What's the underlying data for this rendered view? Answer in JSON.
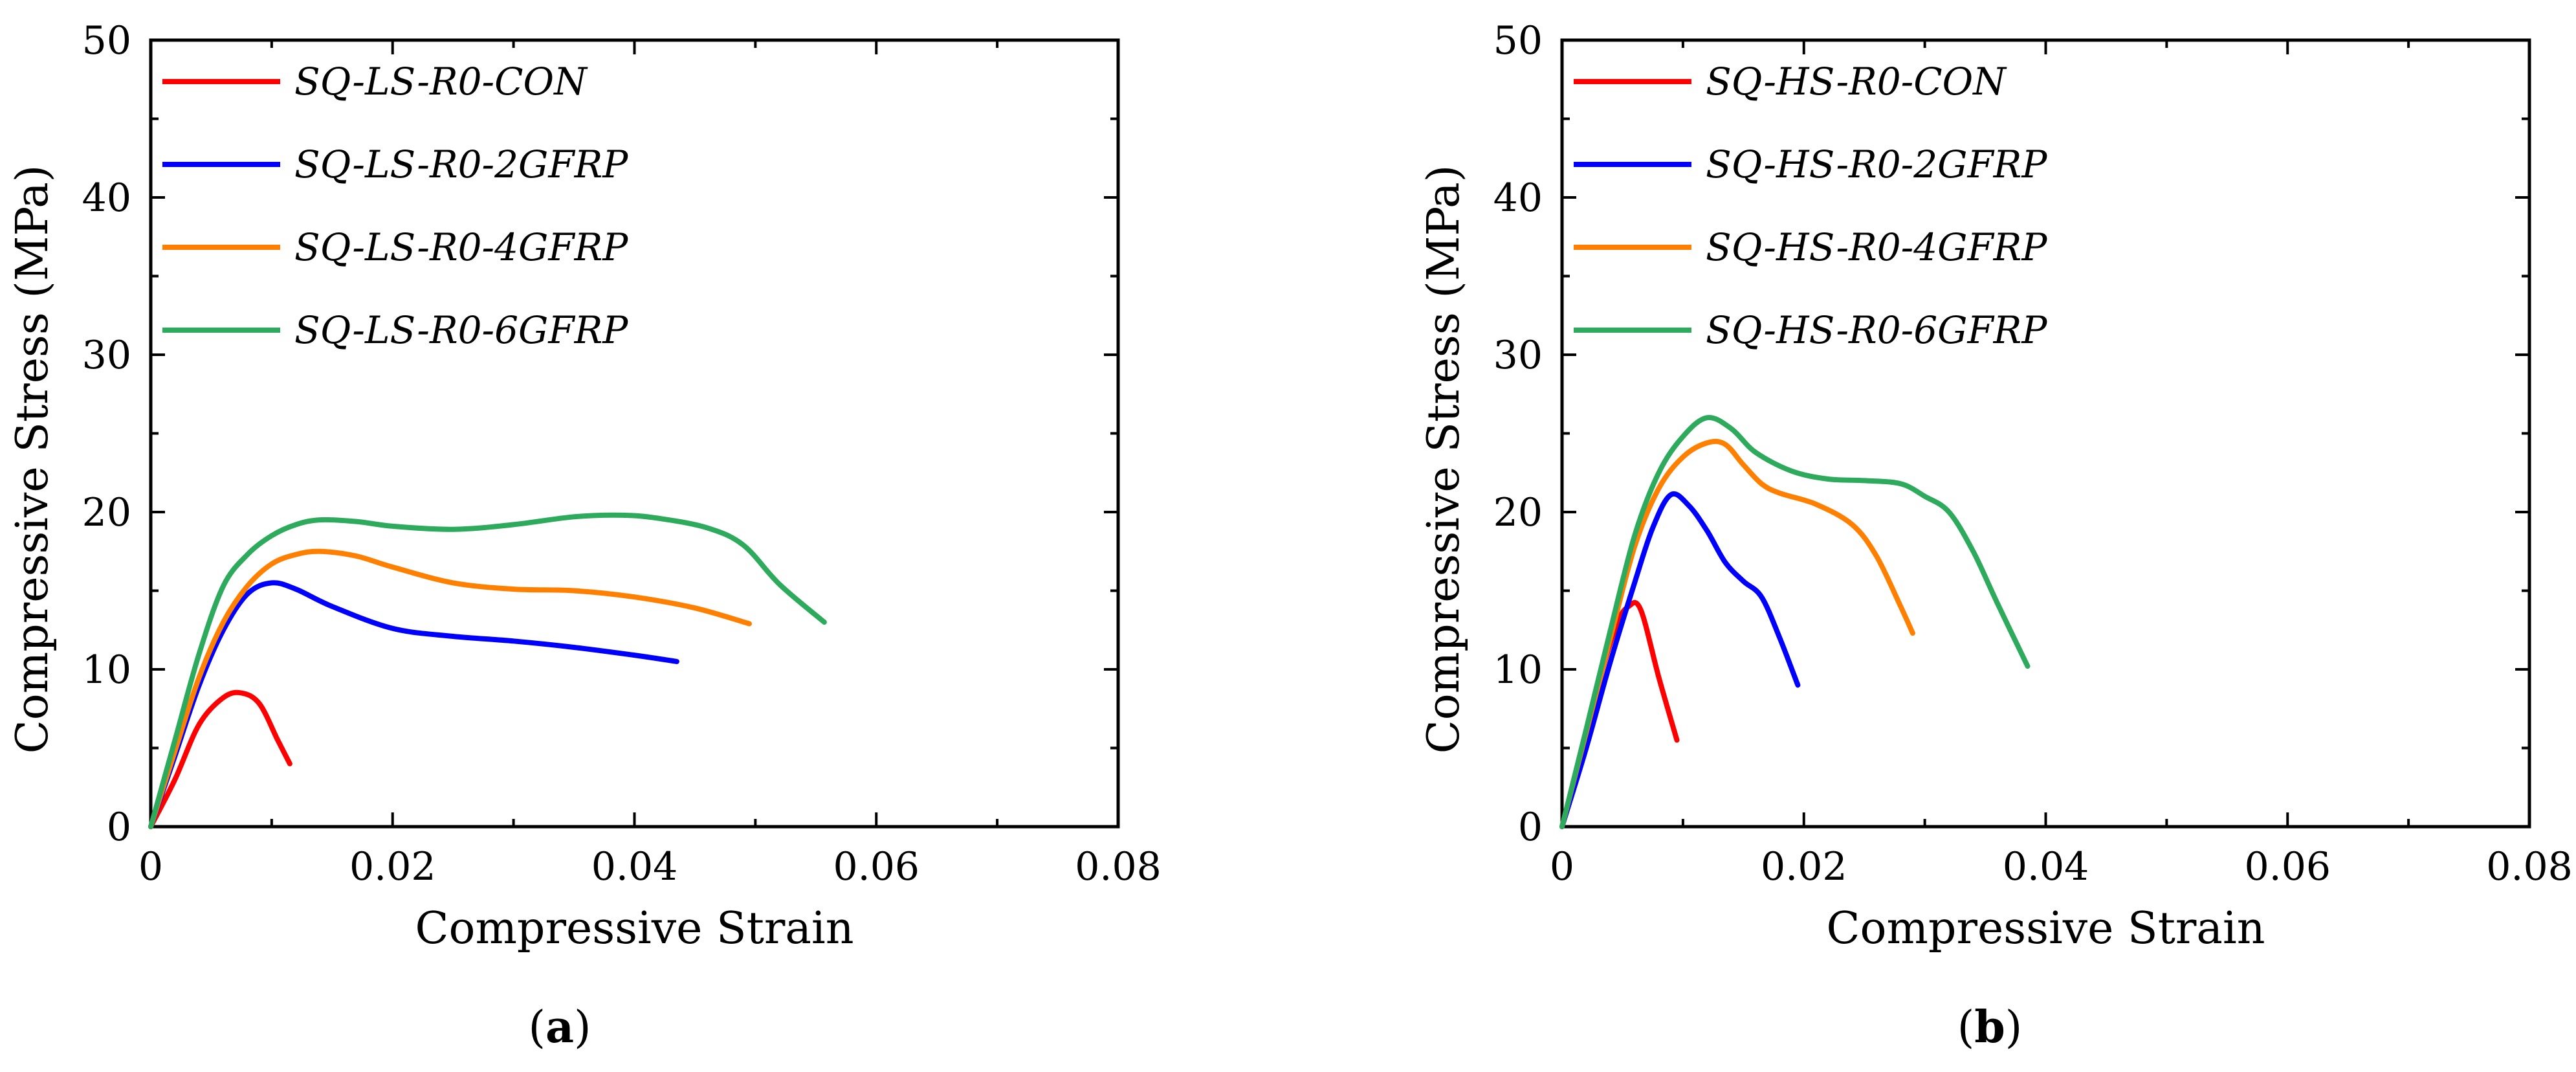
{
  "chart_data": [
    {
      "type": "line",
      "panel_label": "a",
      "xlabel": "Compressive Strain",
      "ylabel": "Compressive Stress (MPa)",
      "xlim": [
        0,
        0.08
      ],
      "ylim": [
        0,
        50
      ],
      "xticks": [
        "0",
        "0.02",
        "0.04",
        "0.06",
        "0.08"
      ],
      "yticks": [
        "0",
        "10",
        "20",
        "30",
        "40",
        "50"
      ],
      "legend_position": "top-left",
      "grid": false,
      "series": [
        {
          "name": "SQ-LS-R0-CON",
          "color": "#ff0000",
          "x": [
            0,
            0.002,
            0.004,
            0.006,
            0.0075,
            0.009,
            0.0105,
            0.0115
          ],
          "y": [
            0,
            3,
            6.5,
            8.2,
            8.5,
            7.8,
            5.5,
            4
          ]
        },
        {
          "name": "SQ-LS-R0-2GFRP",
          "color": "#0000ff",
          "x": [
            0,
            0.002,
            0.004,
            0.006,
            0.008,
            0.01,
            0.012,
            0.015,
            0.02,
            0.025,
            0.03,
            0.035,
            0.04,
            0.0435
          ],
          "y": [
            0,
            4.5,
            9,
            12.5,
            14.8,
            15.5,
            15.1,
            14,
            12.6,
            12.1,
            11.8,
            11.4,
            10.9,
            10.5
          ]
        },
        {
          "name": "SQ-LS-R0-4GFRP",
          "color": "#ff8000",
          "x": [
            0,
            0.002,
            0.004,
            0.006,
            0.008,
            0.01,
            0.012,
            0.014,
            0.017,
            0.02,
            0.025,
            0.03,
            0.035,
            0.04,
            0.045,
            0.0495
          ],
          "y": [
            0,
            4.8,
            9.5,
            13,
            15.3,
            16.7,
            17.3,
            17.5,
            17.2,
            16.5,
            15.5,
            15.1,
            15,
            14.6,
            13.9,
            12.9
          ]
        },
        {
          "name": "SQ-LS-R0-6GFRP",
          "color": "#2eaa5c",
          "x": [
            0,
            0.002,
            0.004,
            0.006,
            0.008,
            0.01,
            0.012,
            0.014,
            0.017,
            0.02,
            0.025,
            0.03,
            0.035,
            0.039,
            0.042,
            0.046,
            0.049,
            0.052,
            0.0557
          ],
          "y": [
            0,
            5.5,
            11,
            15.3,
            17.3,
            18.5,
            19.2,
            19.5,
            19.4,
            19.1,
            18.9,
            19.2,
            19.7,
            19.8,
            19.6,
            19,
            17.9,
            15.4,
            13
          ]
        }
      ]
    },
    {
      "type": "line",
      "panel_label": "b",
      "xlabel": "Compressive Strain",
      "ylabel": "Compressive Stress (MPa)",
      "xlim": [
        0,
        0.08
      ],
      "ylim": [
        0,
        50
      ],
      "xticks": [
        "0",
        "0.02",
        "0.04",
        "0.06",
        "0.08"
      ],
      "yticks": [
        "0",
        "10",
        "20",
        "30",
        "40",
        "50"
      ],
      "legend_position": "top-left",
      "grid": false,
      "series": [
        {
          "name": "SQ-HS-R0-CON",
          "color": "#ff0000",
          "x": [
            0,
            0.0015,
            0.003,
            0.0045,
            0.0055,
            0.0065,
            0.008,
            0.0095
          ],
          "y": [
            0,
            4,
            9,
            12.8,
            14,
            13.8,
            9.5,
            5.5
          ]
        },
        {
          "name": "SQ-HS-R0-2GFRP",
          "color": "#0000ff",
          "x": [
            0,
            0.002,
            0.004,
            0.006,
            0.0075,
            0.009,
            0.0105,
            0.012,
            0.0135,
            0.015,
            0.0165,
            0.018,
            0.0195
          ],
          "y": [
            0,
            5,
            10.5,
            15.5,
            19,
            21.1,
            20.4,
            18.8,
            16.8,
            15.6,
            14.6,
            12,
            9
          ]
        },
        {
          "name": "SQ-HS-R0-4GFRP",
          "color": "#ff8000",
          "x": [
            0,
            0.002,
            0.004,
            0.006,
            0.008,
            0.01,
            0.012,
            0.0135,
            0.015,
            0.0165,
            0.018,
            0.021,
            0.024,
            0.026,
            0.028,
            0.029
          ],
          "y": [
            0,
            6,
            12,
            17.8,
            21.5,
            23.5,
            24.4,
            24.3,
            23,
            21.8,
            21.2,
            20.5,
            19.2,
            17.2,
            14,
            12.3
          ]
        },
        {
          "name": "SQ-HS-R0-6GFRP",
          "color": "#2eaa5c",
          "x": [
            0,
            0.002,
            0.004,
            0.006,
            0.008,
            0.01,
            0.012,
            0.014,
            0.016,
            0.019,
            0.022,
            0.025,
            0.028,
            0.03,
            0.032,
            0.034,
            0.036,
            0.0385
          ],
          "y": [
            0,
            6.2,
            12.5,
            18.5,
            22.5,
            24.8,
            26,
            25.3,
            23.8,
            22.6,
            22.1,
            22,
            21.8,
            21,
            20,
            17.5,
            14.2,
            10.2
          ]
        }
      ]
    }
  ],
  "captions": [
    {
      "open": "(",
      "letter": "a",
      "close": ")"
    },
    {
      "open": "(",
      "letter": "b",
      "close": ")"
    }
  ]
}
